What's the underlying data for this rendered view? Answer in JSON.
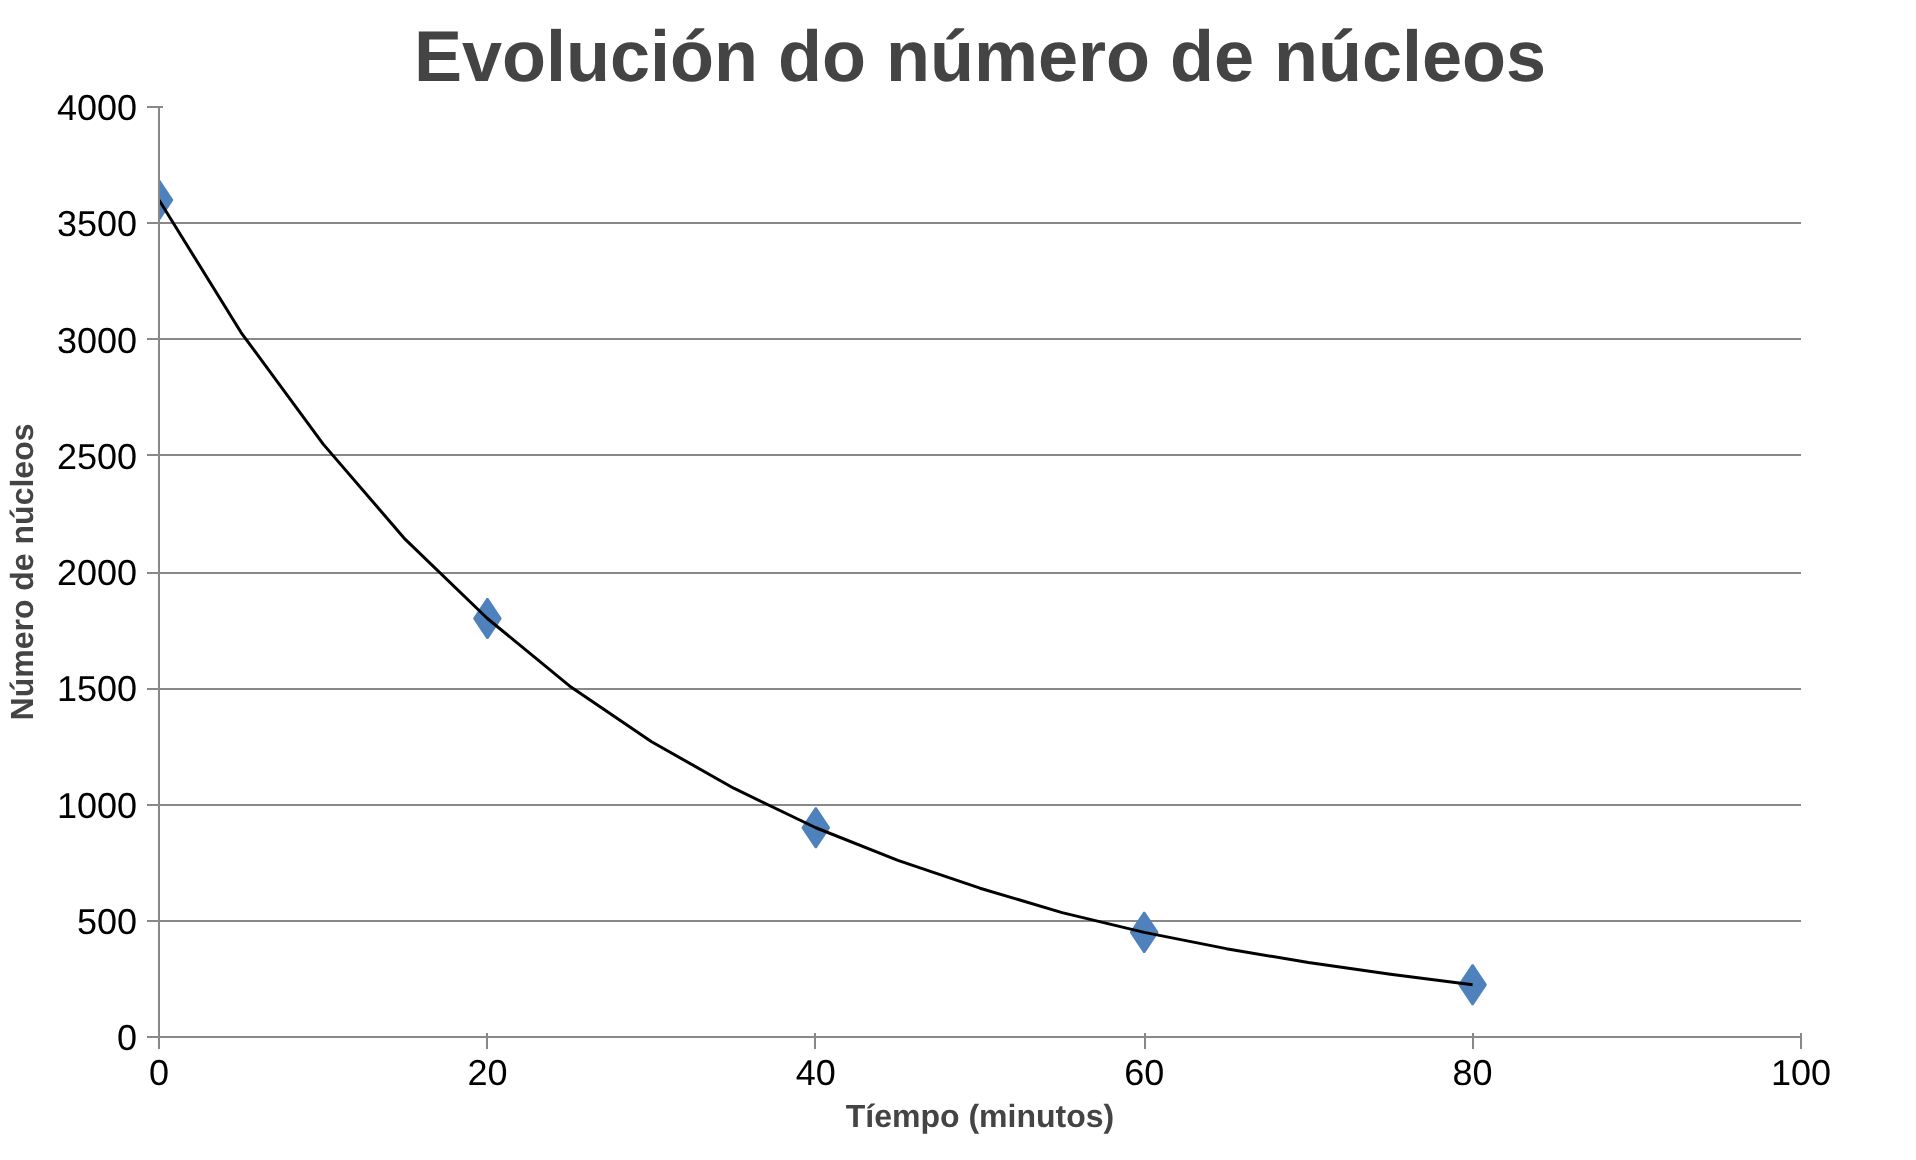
{
  "chart_data": {
    "type": "scatter",
    "title": "Evolución do número de núcleos",
    "xlabel": "Tíempo (minutos)",
    "ylabel": "Número de núcleos",
    "x": [
      0,
      20,
      40,
      60,
      80
    ],
    "series": [
      {
        "color": "#4f81bd",
        "values": [
          3600,
          1800,
          900,
          450,
          225
        ],
        "marker": "diamond"
      },
      {
        "type": "line",
        "color": "#000000",
        "x": [
          0,
          5,
          10,
          15,
          20,
          25,
          30,
          35,
          40,
          45,
          50,
          55,
          60,
          65,
          70,
          75,
          80
        ],
        "values": [
          3600,
          3030,
          2550,
          2140,
          1800,
          1510,
          1270,
          1070,
          900,
          760,
          640,
          535,
          450,
          380,
          320,
          270,
          225
        ],
        "line_style": "solid"
      }
    ],
    "xlim": [
      0,
      100
    ],
    "ylim": [
      0,
      4000
    ],
    "xticks": [
      0,
      20,
      40,
      60,
      80,
      100
    ],
    "yticks": [
      0,
      500,
      1000,
      1500,
      2000,
      2500,
      3000,
      3500,
      4000
    ],
    "grid": "y"
  }
}
